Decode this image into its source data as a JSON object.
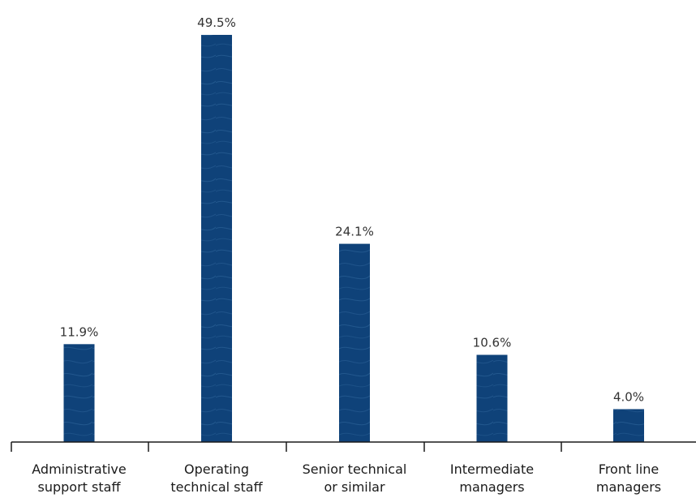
{
  "chart_data": {
    "type": "bar",
    "categories": [
      [
        "Administrative",
        "support staff"
      ],
      [
        "Operating",
        "technical staff"
      ],
      [
        "Senior technical",
        "or similar"
      ],
      [
        "Intermediate",
        "managers"
      ],
      [
        "Front line",
        "managers"
      ]
    ],
    "values": [
      11.9,
      49.5,
      24.1,
      10.6,
      4.0
    ],
    "value_labels": [
      "11.9%",
      "49.5%",
      "24.1%",
      "10.6%",
      "4.0%"
    ],
    "ylim": [
      0,
      50
    ],
    "grid": false,
    "legend": "none",
    "colors": {
      "bar": "#0f4279",
      "bar_texture": "#2a5f96",
      "axis": "#1a1a1a",
      "value_text": "#333333",
      "category_text": "#1a1a1a"
    }
  }
}
